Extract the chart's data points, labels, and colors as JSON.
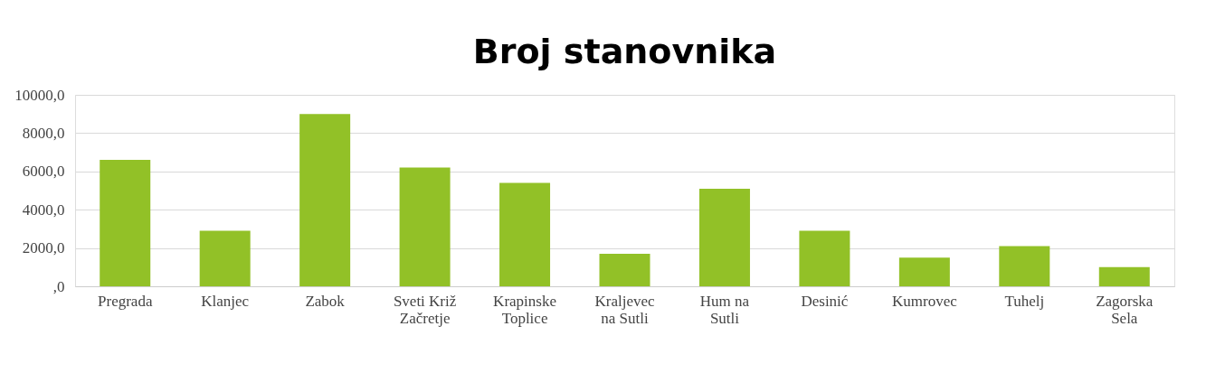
{
  "chart_data": {
    "type": "bar",
    "title": "Broj stanovnika",
    "categories": [
      "Pregrada",
      "Klanjec",
      "Zabok",
      "Sveti Križ Začretje",
      "Krapinske Toplice",
      "Kraljevec na Sutli",
      "Hum na Sutli",
      "Desinić",
      "Kumrovec",
      "Tuhelj",
      "Zagorska Sela"
    ],
    "values": [
      6600,
      2900,
      9000,
      6200,
      5400,
      1700,
      5100,
      2900,
      1500,
      2100,
      1000
    ],
    "color": "#92c127",
    "ylim": [
      0,
      10000
    ],
    "yticks": [
      {
        "value": 0,
        "label": ",0"
      },
      {
        "value": 2000,
        "label": "2000,0"
      },
      {
        "value": 4000,
        "label": "4000,0"
      },
      {
        "value": 6000,
        "label": "6000,0"
      },
      {
        "value": 8000,
        "label": "8000,0"
      },
      {
        "value": 10000,
        "label": "10000,0"
      }
    ],
    "grid": "y"
  }
}
